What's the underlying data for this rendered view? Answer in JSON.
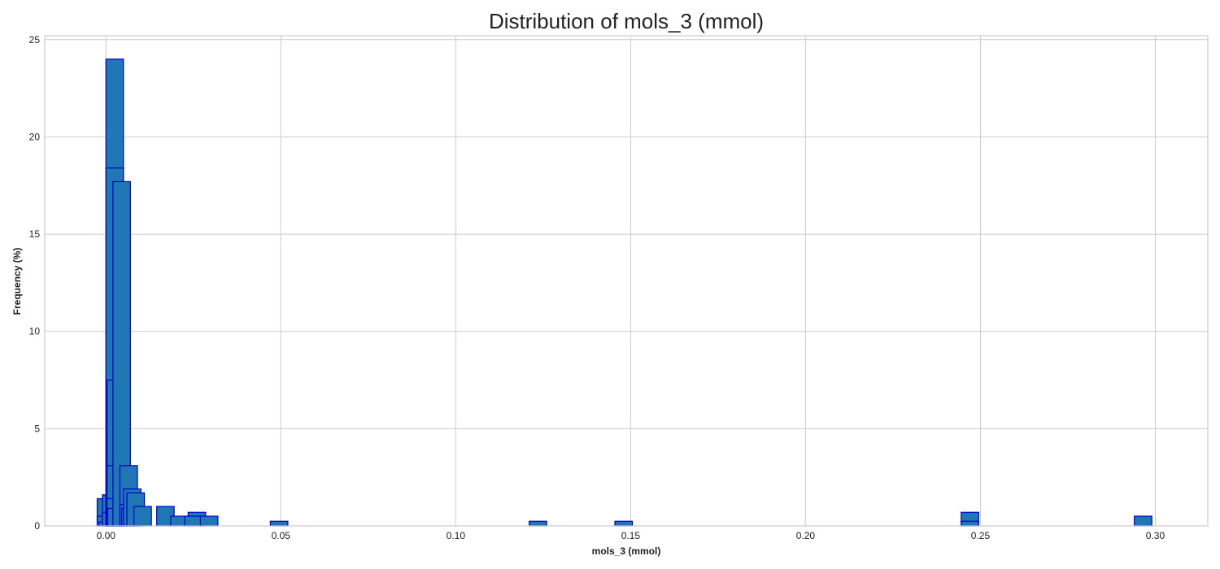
{
  "chart_data": {
    "type": "bar",
    "title": "Distribution of mols_3 (mmol)",
    "xlabel": "mols_3 (mmol)",
    "ylabel": "Frequency (%)",
    "xlim": [
      -0.0175,
      0.315
    ],
    "ylim": [
      0,
      25.2
    ],
    "x_ticks": [
      0.0,
      0.05,
      0.1,
      0.15,
      0.2,
      0.25,
      0.3
    ],
    "x_tick_labels": [
      "0.00",
      "0.05",
      "0.10",
      "0.15",
      "0.20",
      "0.25",
      "0.30"
    ],
    "y_ticks": [
      0,
      5,
      10,
      15,
      20,
      25
    ],
    "y_tick_labels": [
      "0",
      "5",
      "10",
      "15",
      "20",
      "25"
    ],
    "grid": true,
    "colors": {
      "bar_fill": "#1f77b4",
      "bar_edge": "#0000cc"
    },
    "bars": [
      {
        "x0": -0.0025,
        "x1": 0.0025,
        "value": 1.4
      },
      {
        "x0": -0.0025,
        "x1": 0.0025,
        "value": 0.5
      },
      {
        "x0": -0.002,
        "x1": 0.003,
        "value": 0.2
      },
      {
        "x0": -0.001,
        "x1": 0.004,
        "value": 1.6
      },
      {
        "x0": -0.001,
        "x1": 0.004,
        "value": 0.7
      },
      {
        "x0": 0.0,
        "x1": 0.005,
        "value": 24.0
      },
      {
        "x0": 0.0,
        "x1": 0.005,
        "value": 18.4
      },
      {
        "x0": 0.0003,
        "x1": 0.0053,
        "value": 7.5
      },
      {
        "x0": 0.0003,
        "x1": 0.0053,
        "value": 3.1
      },
      {
        "x0": 0.0003,
        "x1": 0.0053,
        "value": 1.4
      },
      {
        "x0": 0.0005,
        "x1": 0.0055,
        "value": 0.9
      },
      {
        "x0": 0.002,
        "x1": 0.007,
        "value": 17.7
      },
      {
        "x0": 0.004,
        "x1": 0.009,
        "value": 3.1
      },
      {
        "x0": 0.004,
        "x1": 0.009,
        "value": 1.1
      },
      {
        "x0": 0.0045,
        "x1": 0.0095,
        "value": 0.9
      },
      {
        "x0": 0.005,
        "x1": 0.01,
        "value": 1.9
      },
      {
        "x0": 0.006,
        "x1": 0.011,
        "value": 1.7
      },
      {
        "x0": 0.008,
        "x1": 0.013,
        "value": 1.0
      },
      {
        "x0": 0.0145,
        "x1": 0.0195,
        "value": 1.0
      },
      {
        "x0": 0.0185,
        "x1": 0.0235,
        "value": 0.5
      },
      {
        "x0": 0.0235,
        "x1": 0.0285,
        "value": 0.7
      },
      {
        "x0": 0.0225,
        "x1": 0.0275,
        "value": 0.5
      },
      {
        "x0": 0.027,
        "x1": 0.032,
        "value": 0.5
      },
      {
        "x0": 0.047,
        "x1": 0.052,
        "value": 0.24
      },
      {
        "x0": 0.121,
        "x1": 0.126,
        "value": 0.24
      },
      {
        "x0": 0.1455,
        "x1": 0.1505,
        "value": 0.24
      },
      {
        "x0": 0.2445,
        "x1": 0.2495,
        "value": 0.7
      },
      {
        "x0": 0.2445,
        "x1": 0.2495,
        "value": 0.24
      },
      {
        "x0": 0.294,
        "x1": 0.299,
        "value": 0.5
      }
    ]
  }
}
